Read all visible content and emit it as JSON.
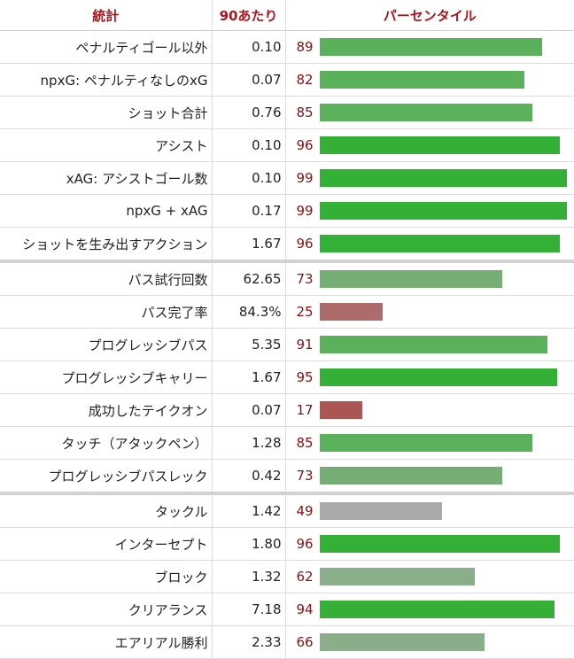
{
  "header": {
    "stat": "統計",
    "per90": "90あたり",
    "percentile": "パーセンタイル"
  },
  "colors": {
    "high": "#33b035",
    "good": "#5bb05b",
    "mid_good": "#75ad75",
    "fair": "#8aae8a",
    "avg": "#aaaaaa",
    "low": "#ad6b6b",
    "very_low": "#ac5555"
  },
  "rows": [
    {
      "stat": "ペナルティゴール以外",
      "per90": "0.10",
      "percentile": "89",
      "sep": false
    },
    {
      "stat": "npxG: ペナルティなしのxG",
      "per90": "0.07",
      "percentile": "82",
      "sep": false
    },
    {
      "stat": "ショット合計",
      "per90": "0.76",
      "percentile": "85",
      "sep": false
    },
    {
      "stat": "アシスト",
      "per90": "0.10",
      "percentile": "96",
      "sep": false
    },
    {
      "stat": "xAG: アシストゴール数",
      "per90": "0.10",
      "percentile": "99",
      "sep": false
    },
    {
      "stat": "npxG + xAG",
      "per90": "0.17",
      "percentile": "99",
      "sep": false
    },
    {
      "stat": "ショットを生み出すアクション",
      "per90": "1.67",
      "percentile": "96",
      "sep": false
    },
    {
      "stat": "パス試行回数",
      "per90": "62.65",
      "percentile": "73",
      "sep": true
    },
    {
      "stat": "パス完了率",
      "per90": "84.3%",
      "percentile": "25",
      "sep": false
    },
    {
      "stat": "プログレッシブパス",
      "per90": "5.35",
      "percentile": "91",
      "sep": false
    },
    {
      "stat": "プログレッシブキャリー",
      "per90": "1.67",
      "percentile": "95",
      "sep": false
    },
    {
      "stat": "成功したテイクオン",
      "per90": "0.07",
      "percentile": "17",
      "sep": false
    },
    {
      "stat": "タッチ（アタックペン）",
      "per90": "1.28",
      "percentile": "85",
      "sep": false
    },
    {
      "stat": "プログレッシブパスレック",
      "per90": "0.42",
      "percentile": "73",
      "sep": false
    },
    {
      "stat": "タックル",
      "per90": "1.42",
      "percentile": "49",
      "sep": true
    },
    {
      "stat": "インターセプト",
      "per90": "1.80",
      "percentile": "96",
      "sep": false
    },
    {
      "stat": "ブロック",
      "per90": "1.32",
      "percentile": "62",
      "sep": false
    },
    {
      "stat": "クリアランス",
      "per90": "7.18",
      "percentile": "94",
      "sep": false
    },
    {
      "stat": "エアリアル勝利",
      "per90": "2.33",
      "percentile": "66",
      "sep": false
    }
  ]
}
